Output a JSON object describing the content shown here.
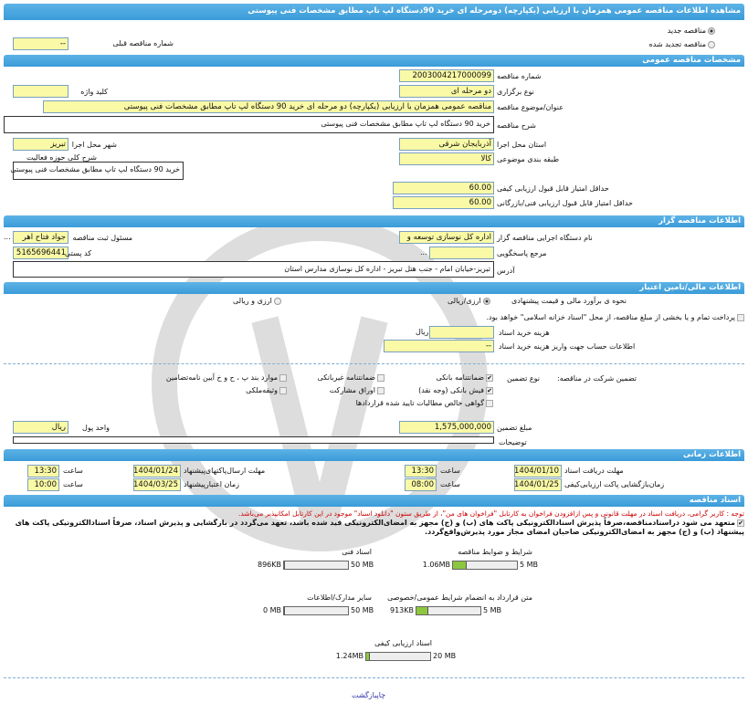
{
  "title": "مشاهده اطلاعات مناقصه عمومی همزمان با ارزیابی (یکپارچه) دومرحله ای خرید 90دستگاه لپ تاپ مطابق مشخصات فنی پیوستی",
  "tender_type": {
    "new": "مناقصه جدید",
    "renewed": "مناقصه تجدید شده",
    "selected": "new"
  },
  "prev_number": {
    "label": "شماره مناقصه قبلی",
    "value": "--"
  },
  "sections": {
    "general": "مشخصات مناقصه عمومی",
    "organizer": "اطلاعات مناقصه گزار",
    "financial": "اطلاعات مالی/تامین اعتبار",
    "timing": "اطلاعات زمانی",
    "documents": "اسناد مناقصه"
  },
  "general": {
    "number": {
      "label": "شماره مناقصه",
      "value": "2003004217000099"
    },
    "holding_type": {
      "label": "نوع برگزاری",
      "value": "دو مرحله ای"
    },
    "keyword": {
      "label": "کلید واژه",
      "value": ""
    },
    "subject": {
      "label": "عنوان/موضوع مناقصه",
      "value": "مناقصه عمومی همزمان با ارزیابی (یکپارچه) دو مرحله ای خرید 90 دستگاه لپ تاپ مطابق مشخصات فنی پیوستی"
    },
    "description": {
      "label": "شرح مناقصه",
      "value": "خرید 90 دستگاه لپ تاپ مطابق مشخصات فنی پیوستی"
    },
    "province": {
      "label": "استان محل اجرا",
      "value": "آذربایجان شرقی"
    },
    "city": {
      "label": "شهر محل اجرا",
      "value": "تبریز"
    },
    "category": {
      "label": "طبقه بندی موضوعی",
      "value": "کالا"
    },
    "activity": {
      "label": "شرح کلی حوزه فعالیت",
      "value": "خرید 90 دستگاه لپ تاپ مطابق مشخصات فنی پیوستی"
    },
    "min_quality": {
      "label": "حداقل امتیاز قابل قبول ارزیابی کیفی",
      "value": "60.00"
    },
    "min_technical": {
      "label": "حداقل امتیاز قابل قبول ارزیابی فنی/بازرگانی",
      "value": "60.00"
    }
  },
  "organizer": {
    "org": {
      "label": "نام دستگاه اجرایی مناقصه گزار",
      "value": "اداره کل نوسازی  توسعه و"
    },
    "registrar": {
      "label": "مسئول ثبت مناقصه",
      "value": "جواد فتاح اهر"
    },
    "reference": {
      "label": "مرجع پاسخگویی",
      "value": ""
    },
    "postal": {
      "label": "کد پستی",
      "value": "5165696441"
    },
    "address": {
      "label": "آدرس",
      "value": "تبریز-خیابان امام - جنب هتل تبریز - اداره کل نوسازی مدارس استان"
    },
    "more": "..."
  },
  "financial": {
    "estimate_label": "نحوه ی برآورد مالی و قیمت پیشنهادی",
    "opt_rial": "ارزی/ریالی",
    "opt_fx": "ارزی و ریالی",
    "treasury": "پرداخت تمام و یا بخشی از مبلغ مناقصه، از محل \"اسناد خزانه اسلامی\" خواهد بود.",
    "doc_cost": {
      "label": "هزینه خرید اسناد",
      "value": "",
      "unit": "ریال"
    },
    "account": {
      "label": "اطلاعات حساب جهت واریز هزینه خرید اسناد",
      "value": "--"
    },
    "guarantee_label": "تضمین شرکت در مناقصه:",
    "guarantee_type": "نوع تضمین",
    "guarantees": [
      {
        "label": "ضمانتنامه بانکی",
        "checked": true
      },
      {
        "label": "ضمانتنامه غیربانکی",
        "checked": false
      },
      {
        "label": "موارد بند پ ، ح و خ آیین نامه‌تضامین",
        "checked": false
      },
      {
        "label": "فیش بانکی (وجه نقد)",
        "checked": true
      },
      {
        "label": "اوراق مشارکت",
        "checked": false
      },
      {
        "label": "وثیقه‌ملکی",
        "checked": false
      },
      {
        "label": "گواهی خالص مطالبات تایید شده قراردادها",
        "checked": false
      }
    ],
    "amount": {
      "label": "مبلغ تضمین",
      "value": "1,575,000,000"
    },
    "currency": {
      "label": "واحد پول",
      "value": "ریال"
    },
    "notes": {
      "label": "توضیحات",
      "value": ""
    }
  },
  "timing": {
    "doc_deadline": {
      "label": "مهلت دریافت اسناد",
      "date": "1404/01/10",
      "time": "13:30"
    },
    "submit_deadline": {
      "label": "مهلت ارسال‌پاکتهای‌پیشنهاد",
      "date": "1404/01/24",
      "time": "13:30"
    },
    "opening": {
      "label": "زمان‌بازگشایی پاکت ارزیابی‌کیفی",
      "date": "1404/01/25",
      "time": "08:00"
    },
    "validity": {
      "label": "زمان اعتبارپیشنهاد",
      "date": "1404/03/25",
      "time": "10:00"
    },
    "time_label": "ساعت"
  },
  "documents": {
    "notice": "توجه : کاربر گرامی، دریافت اسناد در مهلت قانونی و پس ازافزودن فراخوان به کارتابل \"فراخوان های من\"، از طریق ستون \"دانلود اسناد\" موجود در این کارتابل امکانپذیر می‌باشد.",
    "commitment": "متعهد می شود دراسنادمناقصه،صرفاً پذیرش اسنادالکترونیکی پاکت های (ب) و (ج) مجهز به امضای‌الکترونیکی قید شده باشد، تعهد می‌گردد در بازگشایی و پذیرش اسناد، صرفاً اسنادالکترونیکی پاکت های پیشنهاد (ب) و (ج) مجهز به امضای‌الکترونیکی صاحبان امضای مجاز مورد پذیرش‌واقع‌گردد.",
    "files": [
      {
        "name": "شرایط و ضوابط مناقصه",
        "size": "1.06MB",
        "max": "5 MB",
        "fill": 0.21
      },
      {
        "name": "اسناد فنی",
        "size": "896KB",
        "max": "50 MB",
        "fill": 0.02
      },
      {
        "name": "متن قرارداد به انضمام شرایط عمومی/خصوصی",
        "size": "913KB",
        "max": "5 MB",
        "fill": 0.18
      },
      {
        "name": "سایر مدارک/اطلاعات",
        "size": "0 MB",
        "max": "50 MB",
        "fill": 0
      },
      {
        "name": "اسناد ارزیابی کیفی",
        "size": "1.24MB",
        "max": "20 MB",
        "fill": 0.06
      }
    ]
  },
  "footer": {
    "print": "چاپ",
    "back": "بازگشت"
  },
  "colors": {
    "header": "#3a9bd8",
    "field": "#fafaa6",
    "progress": "#8dc63f",
    "notice": "#cc0000",
    "link": "#3333aa"
  }
}
